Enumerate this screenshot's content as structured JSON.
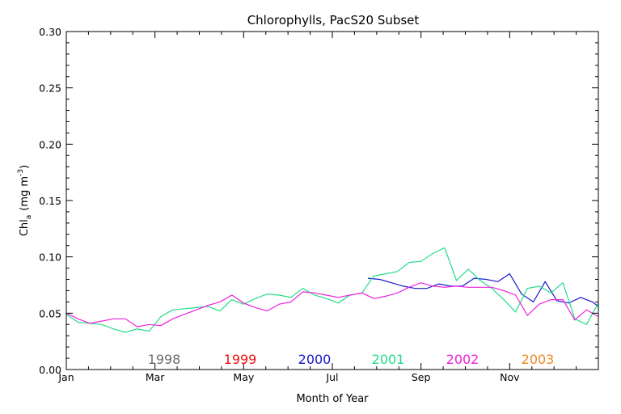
{
  "chart_data": {
    "type": "line",
    "title": "Chlorophylls, PacS20 Subset",
    "xlabel": "Month of Year",
    "ylabel_main": "Chl",
    "ylabel_sub": "a",
    "ylabel_units_pre": "(mg m",
    "ylabel_units_sup": "-3",
    "ylabel_units_post": ")",
    "xlim": [
      0,
      360
    ],
    "ylim": [
      0,
      0.3
    ],
    "grid": false,
    "x_tick_labels": [
      "Jan",
      "Mar",
      "May",
      "Jul",
      "Sep",
      "Nov"
    ],
    "x_ticks": [
      0,
      60,
      120,
      180,
      240,
      300
    ],
    "y_tick_labels": [
      "0.00",
      "0.05",
      "0.10",
      "0.15",
      "0.20",
      "0.25",
      "0.30"
    ],
    "y_ticks": [
      0,
      0.05,
      0.1,
      0.15,
      0.2,
      0.25,
      0.3
    ],
    "legend_placement": "bottom",
    "legend": [
      {
        "name": "1998",
        "color": "#6e6e6e"
      },
      {
        "name": "1999",
        "color": "#ee1111"
      },
      {
        "name": "2000",
        "color": "#1a1acc"
      },
      {
        "name": "2001",
        "color": "#22dd88"
      },
      {
        "name": "2002",
        "color": "#ee22dd"
      },
      {
        "name": "2003",
        "color": "#ee8822"
      }
    ],
    "series": [
      {
        "name": "2000",
        "color": "#1a1acc",
        "x": [
          204,
          212,
          220,
          228,
          236,
          244,
          252,
          260,
          268,
          276,
          284,
          292,
          300,
          308,
          316,
          324,
          332,
          340,
          348,
          356,
          360
        ],
        "y": [
          0.081,
          0.08,
          0.077,
          0.074,
          0.072,
          0.072,
          0.076,
          0.074,
          0.074,
          0.081,
          0.08,
          0.078,
          0.085,
          0.067,
          0.06,
          0.078,
          0.061,
          0.059,
          0.064,
          0.06,
          0.056
        ]
      },
      {
        "name": "2001",
        "color": "#22dd88",
        "x": [
          0,
          8,
          16,
          24,
          32,
          40,
          48,
          56,
          64,
          72,
          80,
          88,
          96,
          104,
          112,
          120,
          128,
          136,
          144,
          152,
          160,
          168,
          176,
          184,
          192,
          200,
          208,
          216,
          224,
          232,
          240,
          248,
          256,
          264,
          272,
          280,
          288,
          296,
          304,
          312,
          320,
          328,
          336,
          344,
          352,
          360
        ],
        "y": [
          0.049,
          0.042,
          0.041,
          0.04,
          0.036,
          0.033,
          0.036,
          0.034,
          0.047,
          0.053,
          0.054,
          0.055,
          0.056,
          0.052,
          0.062,
          0.058,
          0.063,
          0.067,
          0.066,
          0.064,
          0.072,
          0.066,
          0.063,
          0.059,
          0.066,
          0.068,
          0.083,
          0.085,
          0.087,
          0.095,
          0.096,
          0.103,
          0.108,
          0.079,
          0.089,
          0.079,
          0.072,
          0.062,
          0.051,
          0.072,
          0.074,
          0.068,
          0.077,
          0.045,
          0.04,
          0.059
        ]
      },
      {
        "name": "2002",
        "color": "#ee22dd",
        "x": [
          0,
          8,
          16,
          24,
          32,
          40,
          48,
          56,
          64,
          72,
          80,
          88,
          96,
          104,
          112,
          120,
          128,
          136,
          144,
          152,
          160,
          168,
          176,
          184,
          192,
          200,
          208,
          216,
          224,
          232,
          240,
          248,
          256,
          264,
          272,
          280,
          288,
          296,
          304,
          312,
          320,
          328,
          336,
          344,
          352,
          360
        ],
        "y": [
          0.05,
          0.045,
          0.041,
          0.043,
          0.045,
          0.045,
          0.038,
          0.04,
          0.039,
          0.045,
          0.049,
          0.053,
          0.057,
          0.06,
          0.066,
          0.059,
          0.055,
          0.052,
          0.058,
          0.06,
          0.069,
          0.068,
          0.066,
          0.064,
          0.066,
          0.068,
          0.063,
          0.065,
          0.068,
          0.073,
          0.077,
          0.074,
          0.073,
          0.074,
          0.073,
          0.073,
          0.073,
          0.07,
          0.066,
          0.048,
          0.058,
          0.062,
          0.062,
          0.044,
          0.053,
          0.047
        ]
      }
    ]
  }
}
